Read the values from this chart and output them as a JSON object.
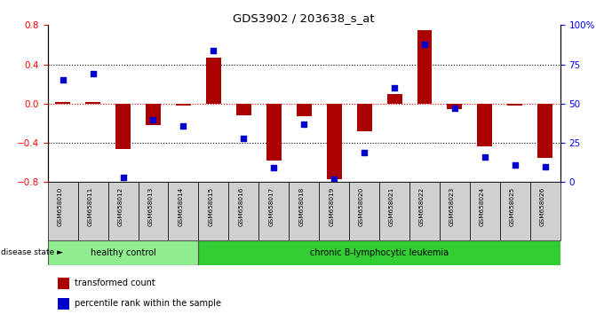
{
  "title": "GDS3902 / 203638_s_at",
  "samples": [
    "GSM658010",
    "GSM658011",
    "GSM658012",
    "GSM658013",
    "GSM658014",
    "GSM658015",
    "GSM658016",
    "GSM658017",
    "GSM658018",
    "GSM658019",
    "GSM658020",
    "GSM658021",
    "GSM658022",
    "GSM658023",
    "GSM658024",
    "GSM658025",
    "GSM658026"
  ],
  "red_bars": [
    0.02,
    0.02,
    -0.46,
    -0.22,
    -0.02,
    0.47,
    -0.12,
    -0.58,
    -0.13,
    -0.77,
    -0.28,
    0.1,
    0.75,
    -0.06,
    -0.44,
    -0.02,
    -0.55
  ],
  "blue_squares": [
    65,
    69,
    3,
    40,
    36,
    84,
    28,
    9,
    37,
    2,
    19,
    60,
    88,
    47,
    16,
    11,
    10
  ],
  "group_labels": [
    "healthy control",
    "chronic B-lymphocytic leukemia"
  ],
  "healthy_count": 5,
  "group_colors": [
    "#90ee90",
    "#32cd32"
  ],
  "disease_state_label": "disease state",
  "legend_red": "transformed count",
  "legend_blue": "percentile rank within the sample",
  "ylim_left": [
    -0.8,
    0.8
  ],
  "ylim_right": [
    0,
    100
  ],
  "yticks_left": [
    -0.8,
    -0.4,
    0.0,
    0.4,
    0.8
  ],
  "yticks_right": [
    0,
    25,
    50,
    75,
    100
  ],
  "ytick_labels_right": [
    "0",
    "25",
    "50",
    "75",
    "100%"
  ],
  "hlines_dotted": [
    0.4,
    -0.4
  ],
  "bar_color": "#aa0000",
  "square_color": "#0000cc",
  "bar_width": 0.5
}
